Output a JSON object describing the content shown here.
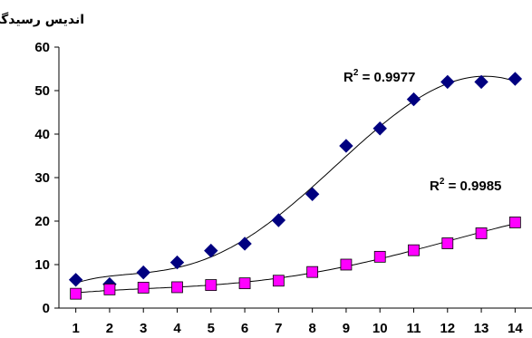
{
  "chart_data": {
    "type": "scatter",
    "ylabel": "اندیس رسیدگی",
    "xlabel": "",
    "title": "",
    "x": [
      1,
      2,
      3,
      4,
      5,
      6,
      7,
      8,
      9,
      10,
      11,
      12,
      13,
      14
    ],
    "xlim": [
      0.5,
      14.5
    ],
    "ylim": [
      0,
      60
    ],
    "yticks": [
      0,
      10,
      20,
      30,
      40,
      50,
      60
    ],
    "grid": false,
    "legend": "none",
    "series": [
      {
        "marker": "diamond",
        "color": "#000080",
        "values": [
          6.5,
          5.5,
          8.2,
          10.5,
          13.2,
          14.8,
          20.2,
          26.2,
          37.3,
          41.3,
          48.0,
          52.0,
          52.0,
          52.7
        ],
        "trendline_r2": {
          "prefix": "R",
          "sup": "2",
          "value": " = 0.9977"
        }
      },
      {
        "marker": "square",
        "color": "#ff00ff",
        "values": [
          3.3,
          4.3,
          4.7,
          4.8,
          5.3,
          5.7,
          6.3,
          8.3,
          10.0,
          11.8,
          13.3,
          14.9,
          17.2,
          19.7
        ],
        "trendline_r2": {
          "prefix": "R",
          "sup": "2",
          "value": " = 0.9985"
        }
      }
    ]
  }
}
